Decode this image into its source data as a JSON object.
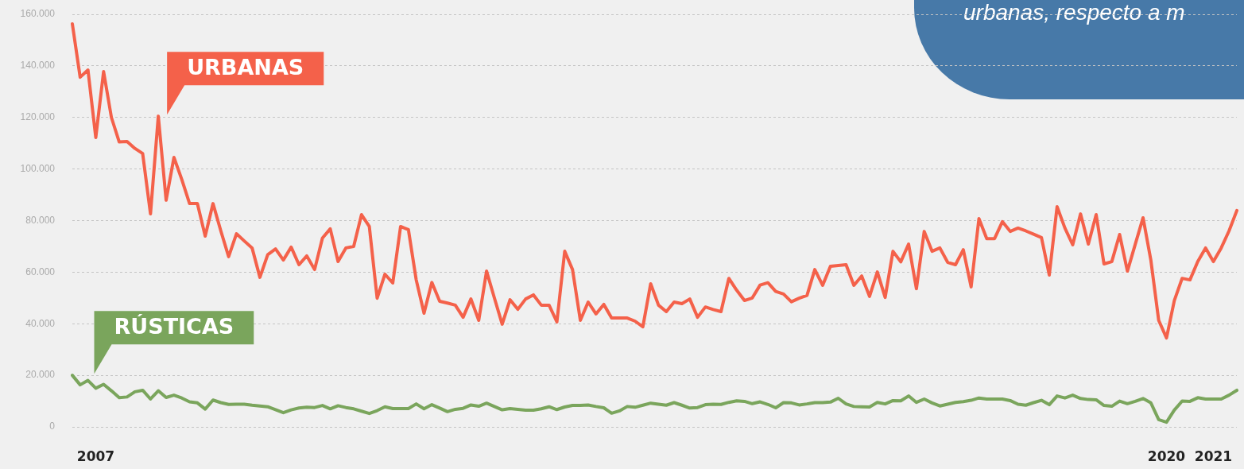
{
  "chart_data": {
    "type": "line",
    "categories": [
      null,
      null,
      null,
      "2007",
      null,
      null,
      null,
      null,
      null,
      null,
      null,
      null,
      null,
      null,
      null,
      null,
      null,
      null,
      null,
      null,
      null,
      null,
      null,
      null,
      null,
      null,
      null,
      null,
      null,
      null,
      null,
      null,
      null,
      null,
      null,
      null,
      null,
      null,
      null,
      null,
      null,
      null,
      null,
      null,
      null,
      null,
      null,
      null,
      null,
      null,
      null,
      null,
      null,
      null,
      null,
      null,
      null,
      null,
      null,
      null,
      null,
      null,
      null,
      null,
      null,
      null,
      null,
      null,
      null,
      null,
      null,
      null,
      null,
      null,
      null,
      null,
      null,
      null,
      null,
      null,
      null,
      null,
      null,
      null,
      null,
      null,
      null,
      null,
      null,
      null,
      null,
      null,
      null,
      null,
      null,
      null,
      null,
      null,
      null,
      null,
      null,
      null,
      null,
      null,
      null,
      null,
      null,
      null,
      null,
      null,
      null,
      null,
      null,
      null,
      null,
      null,
      null,
      null,
      null,
      null,
      null,
      null,
      null,
      null,
      null,
      null,
      null,
      null,
      null,
      null,
      null,
      null,
      null,
      null,
      null,
      null,
      null,
      null,
      null,
      null,
      "2020",
      null,
      null,
      null,
      null,
      null,
      "2021",
      null,
      null,
      null
    ],
    "series": [
      {
        "name": "URBANAS",
        "color": "#f4614a",
        "values": [
          156300,
          135600,
          138400,
          112200,
          137800,
          120000,
          110500,
          110700,
          108000,
          106000,
          82600,
          120500,
          87900,
          104500,
          96000,
          86600,
          86600,
          74000,
          86600,
          76000,
          66000,
          74900,
          72100,
          69400,
          58000,
          66800,
          69000,
          64700,
          69700,
          62900,
          66300,
          61000,
          73200,
          76800,
          64100,
          69400,
          70000,
          82300,
          77700,
          49900,
          59200,
          55800,
          77700,
          76500,
          57000,
          44100,
          56000,
          48700,
          48000,
          47200,
          42500,
          49600,
          41300,
          60400,
          50000,
          39800,
          49300,
          45600,
          49600,
          51200,
          47200,
          47200,
          40700,
          68100,
          61000,
          41300,
          48400,
          43800,
          47500,
          42200,
          42200,
          42200,
          41000,
          38800,
          55500,
          47200,
          44700,
          48400,
          47800,
          49600,
          42500,
          46500,
          45500,
          44700,
          57600,
          53000,
          49000,
          50000,
          55000,
          55900,
          52500,
          51500,
          48500,
          49900,
          51000,
          61000,
          54900,
          62300,
          62600,
          62900,
          54900,
          58500,
          50600,
          60100,
          50200,
          68100,
          64000,
          70900,
          53600,
          75800,
          68100,
          69400,
          63800,
          62900,
          68700,
          54300,
          80800,
          73000,
          73000,
          79600,
          75800,
          77100,
          76000,
          74700,
          73400,
          58900,
          85400,
          77100,
          70600,
          82600,
          70900,
          82300,
          63200,
          64100,
          74600,
          60400,
          70800,
          81100,
          64600,
          41300,
          34500,
          49000,
          57600,
          57000,
          64100,
          69400,
          64100,
          69400,
          76000,
          83900
        ]
      },
      {
        "name": "RÚSTICAS",
        "color": "#7aa55c",
        "values": [
          20000,
          16300,
          18000,
          15000,
          16500,
          14000,
          11300,
          11600,
          13600,
          14200,
          10800,
          14000,
          11400,
          12300,
          11200,
          9700,
          9300,
          6900,
          10400,
          9400,
          8700,
          8800,
          8800,
          8400,
          8100,
          7800,
          6700,
          5500,
          6600,
          7300,
          7600,
          7500,
          8300,
          7000,
          8200,
          7500,
          7000,
          6100,
          5200,
          6300,
          7800,
          7100,
          7100,
          7100,
          8900,
          7000,
          8600,
          7300,
          5900,
          6800,
          7200,
          8500,
          8000,
          9200,
          7900,
          6600,
          7100,
          6800,
          6500,
          6500,
          7000,
          7800,
          6700,
          7700,
          8300,
          8300,
          8500,
          7900,
          7400,
          5300,
          6200,
          7900,
          7600,
          8400,
          9200,
          8800,
          8400,
          9400,
          8400,
          7300,
          7500,
          8600,
          8800,
          8700,
          9500,
          10100,
          9900,
          9000,
          9700,
          8700,
          7400,
          9400,
          9300,
          8500,
          8900,
          9400,
          9400,
          9600,
          11100,
          8900,
          7900,
          7800,
          7700,
          9500,
          8900,
          10200,
          10100,
          12000,
          9500,
          10800,
          9300,
          8100,
          8800,
          9500,
          9800,
          10300,
          11200,
          10800,
          10800,
          10800,
          10200,
          8800,
          8400,
          9400,
          10300,
          8600,
          12000,
          11200,
          12300,
          11000,
          10600,
          10500,
          8300,
          8000,
          10000,
          9000,
          9900,
          11000,
          9300,
          2800,
          1800,
          6500,
          10000,
          9900,
          11300,
          10800,
          10800,
          10800,
          12300,
          14200
        ]
      }
    ],
    "ylim": [
      0,
      160000
    ],
    "yticks": [
      {
        "value": 0,
        "label": "0"
      },
      {
        "value": 20000,
        "label": "20.000"
      },
      {
        "value": 40000,
        "label": "40.000"
      },
      {
        "value": 60000,
        "label": "60.000"
      },
      {
        "value": 80000,
        "label": "80.000"
      },
      {
        "value": 100000,
        "label": "100.000"
      },
      {
        "value": 120000,
        "label": "120.000"
      },
      {
        "value": 140000,
        "label": "140.000"
      },
      {
        "value": 160000,
        "label": "160.000"
      }
    ],
    "grid": "y",
    "marker": "none",
    "line_style": "solid",
    "annotations": [
      "urbanas, respecto a m"
    ]
  }
}
